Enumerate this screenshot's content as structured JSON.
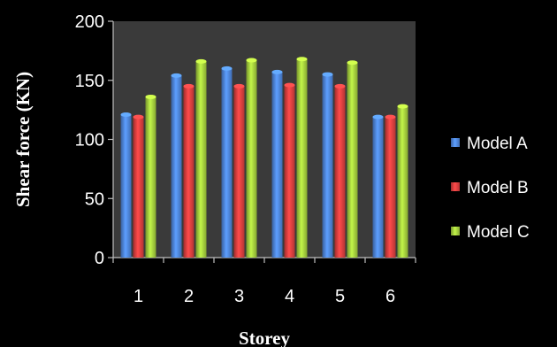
{
  "chart_data": {
    "type": "bar",
    "title": "",
    "xlabel": "Storey",
    "ylabel": "Shear force (KN)",
    "categories": [
      "1",
      "2",
      "3",
      "4",
      "5",
      "6"
    ],
    "ylim": [
      0,
      200
    ],
    "yticks": [
      "0",
      "50",
      "100",
      "150",
      "200"
    ],
    "grid": false,
    "legend_position": "right",
    "series": [
      {
        "name": "Model A",
        "color": "#4a7fd1",
        "values": [
          121,
          154,
          160,
          157,
          155,
          119
        ]
      },
      {
        "name": "Model B",
        "color": "#d23c3c",
        "values": [
          119,
          145,
          145,
          146,
          145,
          119
        ]
      },
      {
        "name": "Model C",
        "color": "#9cc43a",
        "values": [
          136,
          166,
          167,
          168,
          165,
          128
        ]
      }
    ],
    "plot_background": "#3a3a3a",
    "background": "#000000"
  }
}
